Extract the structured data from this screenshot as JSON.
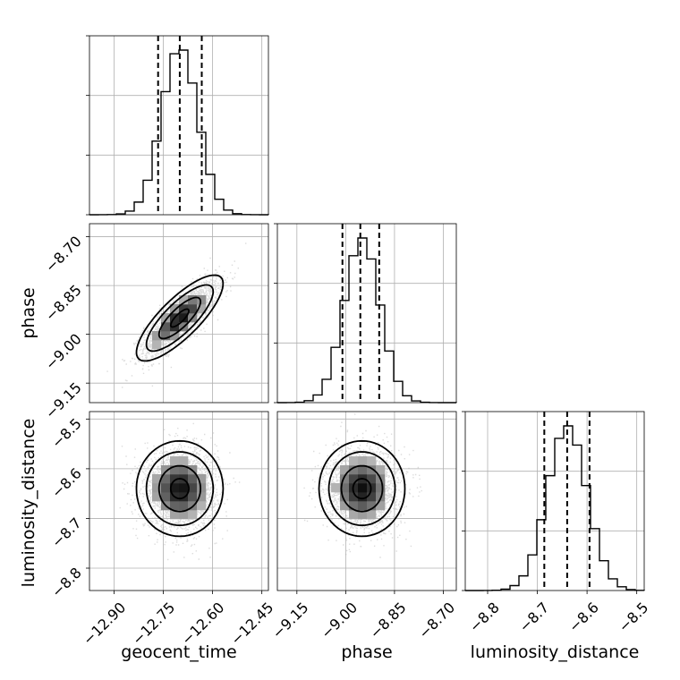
{
  "chart_data": {
    "type": "corner",
    "parameters": [
      {
        "name": "geocent_time",
        "mean": -12.7,
        "sd": 0.055,
        "quantiles": [
          -12.766,
          -12.7,
          -12.633
        ],
        "range": [
          -12.975,
          -12.43
        ],
        "ticks": [
          -12.9,
          -12.75,
          -12.6,
          -12.45
        ],
        "tick_labels": [
          "−12.90",
          "−12.75",
          "−12.60",
          "−12.45"
        ]
      },
      {
        "name": "phase",
        "mean": -8.95,
        "sd": 0.055,
        "quantiles": [
          -9.01,
          -8.955,
          -8.897
        ],
        "range": [
          -9.21,
          -8.66
        ],
        "ticks": [
          -9.15,
          -9.0,
          -8.85,
          -8.7
        ],
        "tick_labels": [
          "−9.15",
          "−9.00",
          "−8.85",
          "−8.70"
        ]
      },
      {
        "name": "luminosity_distance",
        "mean": -8.64,
        "sd": 0.04,
        "quantiles": [
          -8.686,
          -8.64,
          -8.595
        ],
        "range": [
          -8.845,
          -8.485
        ],
        "ticks": [
          -8.8,
          -8.7,
          -8.6,
          -8.5
        ],
        "tick_labels": [
          "−8.8",
          "−8.7",
          "−8.6",
          "−8.5"
        ]
      }
    ],
    "correlations": {
      "geocent_time|phase": 0.8,
      "geocent_time|luminosity_distance": 0.0,
      "phase|luminosity_distance": 0.0
    },
    "labels": {
      "x": [
        "geocent_time",
        "phase",
        "luminosity_distance"
      ],
      "y": [
        "phase",
        "luminosity_distance"
      ]
    },
    "grid": true
  }
}
